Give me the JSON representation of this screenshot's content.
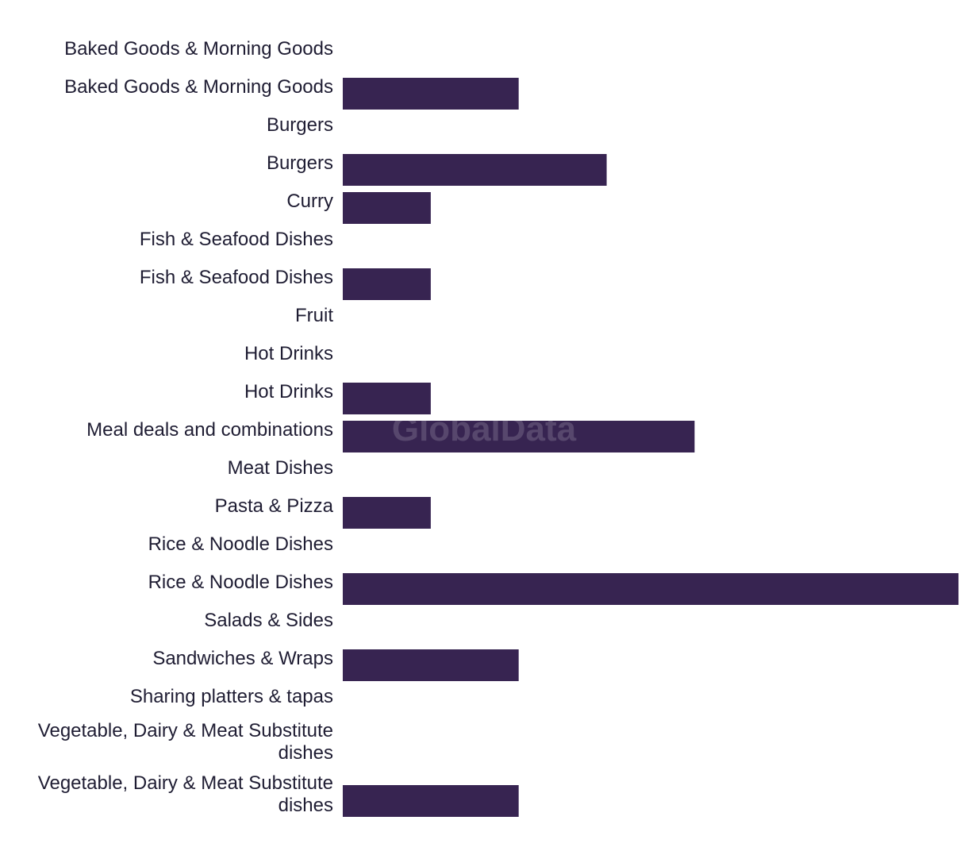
{
  "watermark": "GlobalData",
  "colors": {
    "bar": "#372451",
    "label": "#1f1d33",
    "background": "#ffffff"
  },
  "chart_data": {
    "type": "bar",
    "orientation": "horizontal",
    "categories": [
      "Baked Goods & Morning Goods",
      "Baked Goods & Morning Goods",
      "Burgers",
      "Burgers",
      "Curry",
      "Fish & Seafood Dishes",
      "Fish & Seafood Dishes",
      "Fruit",
      "Hot Drinks",
      "Hot Drinks",
      "Meal deals and combinations",
      "Meat Dishes",
      "Pasta & Pizza",
      "Rice & Noodle Dishes",
      "Rice & Noodle Dishes",
      "Salads & Sides",
      "Sandwiches & Wraps",
      "Sharing platters & tapas",
      "Vegetable, Dairy & Meat Substitute dishes",
      "Vegetable, Dairy & Meat Substitute dishes"
    ],
    "values": [
      0,
      2,
      0,
      3,
      1,
      0,
      1,
      0,
      0,
      1,
      4,
      0,
      1,
      0,
      7,
      0,
      2,
      0,
      0,
      2
    ],
    "xlim": [
      0,
      7
    ],
    "grid": false,
    "legend": "none",
    "xlabel": "",
    "ylabel": ""
  }
}
